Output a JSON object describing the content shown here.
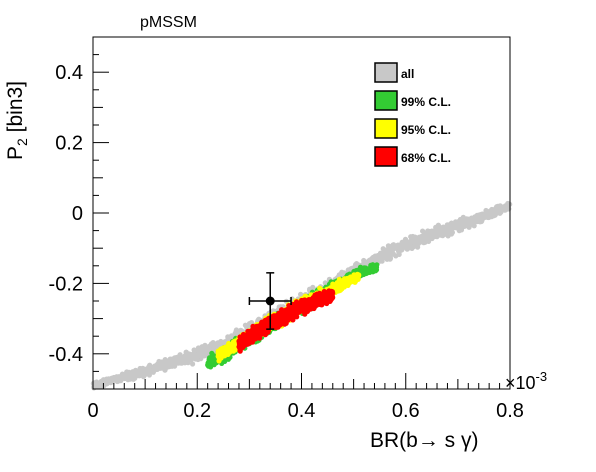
{
  "chart_data": {
    "type": "scatter",
    "title": "pMSSM",
    "xlabel": "BR(b→ s γ)",
    "ylabel_main": "P",
    "ylabel_sub": "2",
    "ylabel_rest": " [bin3]",
    "x_multiplier_base": "×10",
    "x_multiplier_exp": "-3",
    "xlim": [
      0,
      0.8
    ],
    "ylim": [
      -0.5,
      0.5
    ],
    "xticks": [
      0,
      0.2,
      0.4,
      0.6,
      0.8
    ],
    "xtick_labels": [
      "0",
      "0.2",
      "0.4",
      "0.6",
      "0.8"
    ],
    "yticks": [
      -0.4,
      -0.2,
      0,
      0.2,
      0.4
    ],
    "ytick_labels": [
      "-0.4",
      "-0.2",
      "0",
      "0.2",
      "0.4"
    ],
    "grid": false,
    "legend_position": "top-right",
    "series": [
      {
        "name": "all",
        "color": "#c8c8c8",
        "band": {
          "x": [
            0.0,
            0.05,
            0.1,
            0.15,
            0.2,
            0.25,
            0.3,
            0.35,
            0.4,
            0.45,
            0.5,
            0.55,
            0.6,
            0.65,
            0.7,
            0.75,
            0.8
          ],
          "center": [
            -0.49,
            -0.47,
            -0.45,
            -0.425,
            -0.405,
            -0.375,
            -0.335,
            -0.295,
            -0.255,
            -0.215,
            -0.17,
            -0.125,
            -0.09,
            -0.06,
            -0.035,
            -0.01,
            0.02
          ],
          "halfwidth": [
            0.01,
            0.012,
            0.015,
            0.017,
            0.02,
            0.022,
            0.024,
            0.025,
            0.024,
            0.023,
            0.022,
            0.021,
            0.02,
            0.019,
            0.018,
            0.017,
            0.015
          ]
        }
      },
      {
        "name": "99% C.L.",
        "color": "#33cc33",
        "band": {
          "x": [
            0.22,
            0.25,
            0.28,
            0.32,
            0.36,
            0.4,
            0.44,
            0.48,
            0.51,
            0.545
          ],
          "center": [
            -0.425,
            -0.405,
            -0.37,
            -0.34,
            -0.3,
            -0.265,
            -0.23,
            -0.195,
            -0.17,
            -0.155
          ],
          "halfwidth": [
            0.02,
            0.021,
            0.022,
            0.022,
            0.022,
            0.022,
            0.02,
            0.018,
            0.014,
            0.01
          ]
        }
      },
      {
        "name": "95% C.L.",
        "color": "#ffff00",
        "band": {
          "x": [
            0.24,
            0.27,
            0.3,
            0.33,
            0.36,
            0.39,
            0.42,
            0.45,
            0.48,
            0.51
          ],
          "center": [
            -0.405,
            -0.38,
            -0.35,
            -0.32,
            -0.3,
            -0.27,
            -0.245,
            -0.225,
            -0.2,
            -0.18
          ],
          "halfwidth": [
            0.02,
            0.021,
            0.022,
            0.022,
            0.022,
            0.022,
            0.02,
            0.018,
            0.016,
            0.012
          ]
        }
      },
      {
        "name": "68% C.L.",
        "color": "#ff0000",
        "band": {
          "x": [
            0.28,
            0.3,
            0.32,
            0.34,
            0.36,
            0.38,
            0.4,
            0.42,
            0.44,
            0.46
          ],
          "center": [
            -0.375,
            -0.355,
            -0.335,
            -0.315,
            -0.3,
            -0.28,
            -0.265,
            -0.255,
            -0.245,
            -0.235
          ],
          "halfwidth": [
            0.018,
            0.02,
            0.022,
            0.023,
            0.023,
            0.022,
            0.021,
            0.02,
            0.018,
            0.016
          ]
        }
      }
    ],
    "measurement": {
      "x": 0.34,
      "y": -0.25,
      "x_err": 0.04,
      "y_err_up": 0.08,
      "y_err_down": 0.08
    }
  }
}
